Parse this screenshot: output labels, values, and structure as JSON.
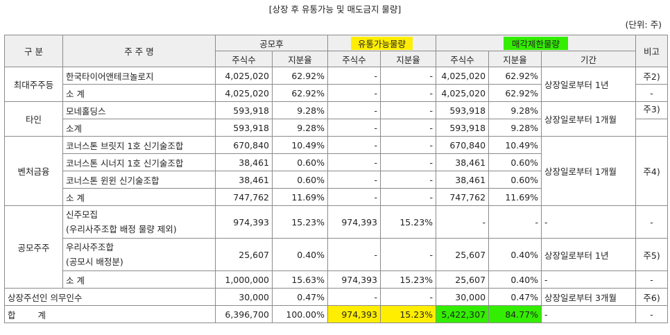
{
  "title": "[상장 후 유통가능 및 매도금지 물량]",
  "unit": "(단위: 주)",
  "headers": {
    "category": "구 분",
    "shareholder": "주 주 명",
    "after_ipo": "공모후",
    "tradable": "유통가능물량",
    "restricted": "매각제한물량",
    "note": "비고",
    "shares": "주식수",
    "ratio": "지분율",
    "period": "기간"
  },
  "groups": [
    {
      "category": "최대주주등",
      "rows": [
        {
          "name": "한국타이어앤테크놀로지",
          "s1": "4,025,020",
          "r1": "62.92%",
          "s2": "-",
          "r2": "-",
          "s3": "4,025,020",
          "r3": "62.92%",
          "period": "상장일로부터 1년",
          "note": "주2)"
        },
        {
          "name": "소 계",
          "s1": "4,025,020",
          "r1": "62.92%",
          "s2": "-",
          "r2": "-",
          "s3": "4,025,020",
          "r3": "62.92%",
          "note": "-"
        }
      ]
    },
    {
      "category": "타인",
      "rows": [
        {
          "name": "모네홀딩스",
          "s1": "593,918",
          "r1": "9.28%",
          "s2": "-",
          "r2": "-",
          "s3": "593,918",
          "r3": "9.28%",
          "period": "상장일로부터 1개월",
          "note": "주3)"
        },
        {
          "name": "소계",
          "s1": "593,918",
          "r1": "9.28%",
          "s2": "-",
          "r2": "-",
          "s3": "593,918",
          "r3": "9.28%"
        }
      ]
    },
    {
      "category": "벤처금융",
      "period": "상장일로부터 1개월",
      "note": "주4)",
      "rows": [
        {
          "name": "코너스톤 브릿지 1호 신기술조합",
          "s1": "670,840",
          "r1": "10.49%",
          "s2": "-",
          "r2": "-",
          "s3": "670,840",
          "r3": "10.49%"
        },
        {
          "name": "코너스톤 시너지 1호 신기술조합",
          "s1": "38,461",
          "r1": "0.60%",
          "s2": "-",
          "r2": "-",
          "s3": "38,461",
          "r3": "0.60%"
        },
        {
          "name": "코너스톤 윈윈 신기술조합",
          "s1": "38,461",
          "r1": "0.60%",
          "s2": "-",
          "r2": "-",
          "s3": "38,461",
          "r3": "0.60%"
        },
        {
          "name": "소 계",
          "s1": "747,762",
          "r1": "11.69%",
          "s2": "-",
          "r2": "-",
          "s3": "747,762",
          "r3": "11.69%"
        }
      ]
    },
    {
      "category": "공모주주",
      "rows": [
        {
          "name": "신주모집",
          "name2": "(우리사주조합 배정 물량 제외)",
          "s1": "974,393",
          "r1": "15.23%",
          "s2": "974,393",
          "r2": "15.23%",
          "s3": "-",
          "r3": "-",
          "period": "-",
          "note": "-"
        },
        {
          "name": "우리사주조합",
          "name2": "(공모시 배정분)",
          "s1": "25,607",
          "r1": "0.40%",
          "s2": "-",
          "r2": "-",
          "s3": "25,607",
          "r3": "0.40%",
          "period": "상장일로부터 1년",
          "note": "주5)"
        },
        {
          "name": "소 계",
          "s1": "1,000,000",
          "r1": "15.63%",
          "s2": "974,393",
          "r2": "15.23%",
          "s3": "25,607",
          "r3": "0.40%",
          "period": "-",
          "note": "-"
        }
      ]
    }
  ],
  "obligation_row": {
    "label": "상장주선인 의무인수",
    "s1": "30,000",
    "r1": "0.47%",
    "s2": "-",
    "r2": "-",
    "s3": "30,000",
    "r3": "0.47%",
    "period": "상장일로부터 3개월",
    "note": "주6)"
  },
  "total_row": {
    "label": "합계",
    "s1": "6,396,700",
    "r1": "100.00%",
    "s2": "974,393",
    "r2": "15.23%",
    "s3": "5,422,307",
    "r3": "84.77%",
    "period": "-",
    "note": "-"
  },
  "colors": {
    "tradable_highlight": "#ffee00",
    "restricted_highlight": "#33ee00",
    "header_bg": "#efefef"
  }
}
